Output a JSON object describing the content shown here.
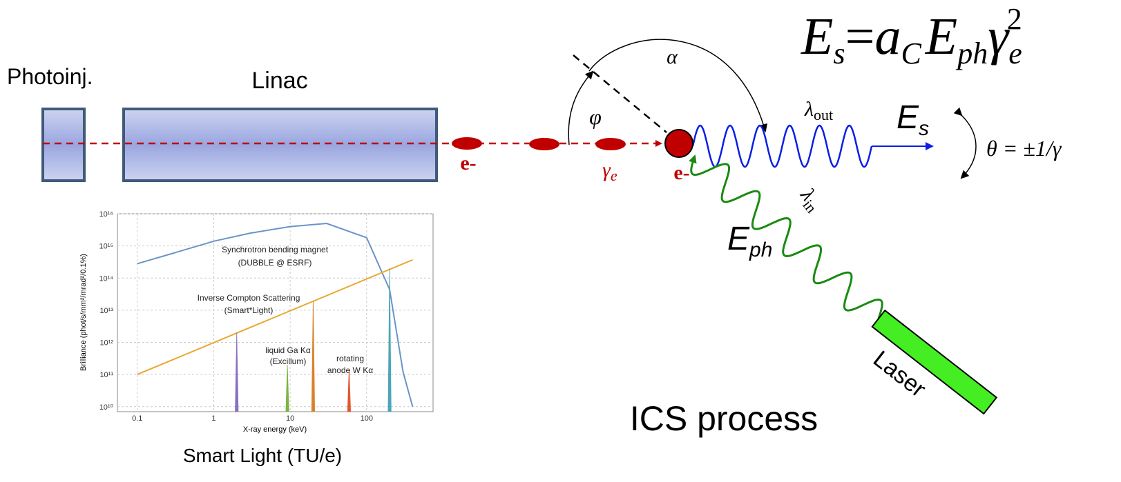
{
  "labels": {
    "photoinjector": "Photoinj.",
    "linac": "Linac",
    "electron_beam": "e-",
    "electron_collision": "e-",
    "gamma_main": "γ",
    "gamma_sub": "e",
    "alpha": "α",
    "phi": "φ",
    "lambda_out_main": "λ",
    "lambda_out_sub": "out",
    "es_main": "E",
    "es_sub": "s",
    "theta": "θ = ±1/γ",
    "lambda_in_main": "λ",
    "lambda_in_sub": "in",
    "eph_main": "E",
    "eph_sub": "ph",
    "laser": "Laser",
    "process": "ICS process",
    "chart_caption": "Smart Light (TU/e)"
  },
  "formula": {
    "lhs": "E",
    "lhs_sub": "s",
    "eq": "=",
    "a": "a",
    "a_sub": "C",
    "E": "E",
    "E_sub": "ph",
    "gamma": "γ",
    "gamma_sub": "e",
    "gamma_sup": "2"
  },
  "chart_data": {
    "type": "line",
    "xscale": "log",
    "yscale": "log",
    "xlabel": "X-ray energy (keV)",
    "ylabel": "Brilliance (phot/s/mm²/mrad²/0.1%)",
    "xlim": [
      0.055,
      740
    ],
    "ylim": [
      7000000000.0,
      1e+16
    ],
    "xticks": [
      0.1,
      1,
      10,
      100
    ],
    "yticks": [
      {
        "value": 10000000000.0,
        "label": "10¹⁰"
      },
      {
        "value": 100000000000.0,
        "label": "10¹¹"
      },
      {
        "value": 1000000000000.0,
        "label": "10¹²"
      },
      {
        "value": 10000000000000.0,
        "label": "10¹³"
      },
      {
        "value": 100000000000000.0,
        "label": "10¹⁴"
      },
      {
        "value": 1000000000000000.0,
        "label": "10¹⁵"
      },
      {
        "value": 1e+16,
        "label": "10¹⁶"
      }
    ],
    "grid": true,
    "series": [
      {
        "color": "#6a93c8",
        "x": [
          0.1,
          0.3,
          1,
          3,
          10,
          30,
          100,
          200,
          300,
          400
        ],
        "values": [
          280000000000000.0,
          600000000000000.0,
          1400000000000000.0,
          2500000000000000.0,
          4000000000000000.0,
          5000000000000000.0,
          1800000000000000.0,
          44000000000000.0,
          120000000000.0,
          10000000000.0
        ]
      },
      {
        "color": "#e8a832",
        "x": [
          0.1,
          400
        ],
        "values": [
          100000000000.0,
          370000000000000.0
        ]
      }
    ],
    "peaks": [
      {
        "x": 2,
        "value": 2000000000000.0,
        "color": "#8a6fc0"
      },
      {
        "x": 9.2,
        "value": 200000000000.0,
        "color": "#7cb342"
      },
      {
        "x": 20,
        "value": 20000000000000.0,
        "color": "#d9822b"
      },
      {
        "x": 59,
        "value": 150000000000.0,
        "color": "#e0572e"
      },
      {
        "x": 200,
        "value": 200000000000000.0,
        "color": "#4aa6b8"
      }
    ],
    "annotations": [
      "Synchrotron bending magnet",
      "(DUBBLE @ ESRF)",
      "Inverse Compton Scattering",
      "(Smart*Light)",
      "liquid Ga Kα",
      "(Excillum)",
      "rotating",
      "anode W Kα"
    ]
  }
}
